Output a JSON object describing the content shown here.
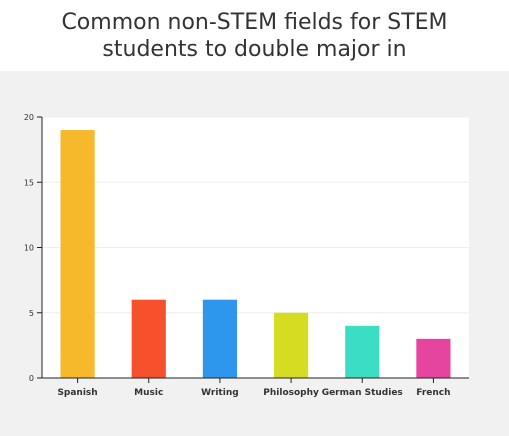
{
  "chart_data": {
    "type": "bar",
    "title": "Common non-STEM fields for STEM\nstudents to double major in",
    "categories": [
      "Spanish",
      "Music",
      "Writing",
      "Philosophy",
      "German Studies",
      "French"
    ],
    "values": [
      19,
      6,
      6,
      5,
      4,
      3
    ],
    "colors": [
      "#f6b92b",
      "#f4512c",
      "#2f96ee",
      "#d5dc22",
      "#3bdec5",
      "#e5449f"
    ],
    "ylim": [
      0,
      20
    ],
    "yticks": [
      0,
      5,
      10,
      15,
      20
    ],
    "xlabel": "",
    "ylabel": "",
    "grid": true,
    "legend": "none"
  }
}
